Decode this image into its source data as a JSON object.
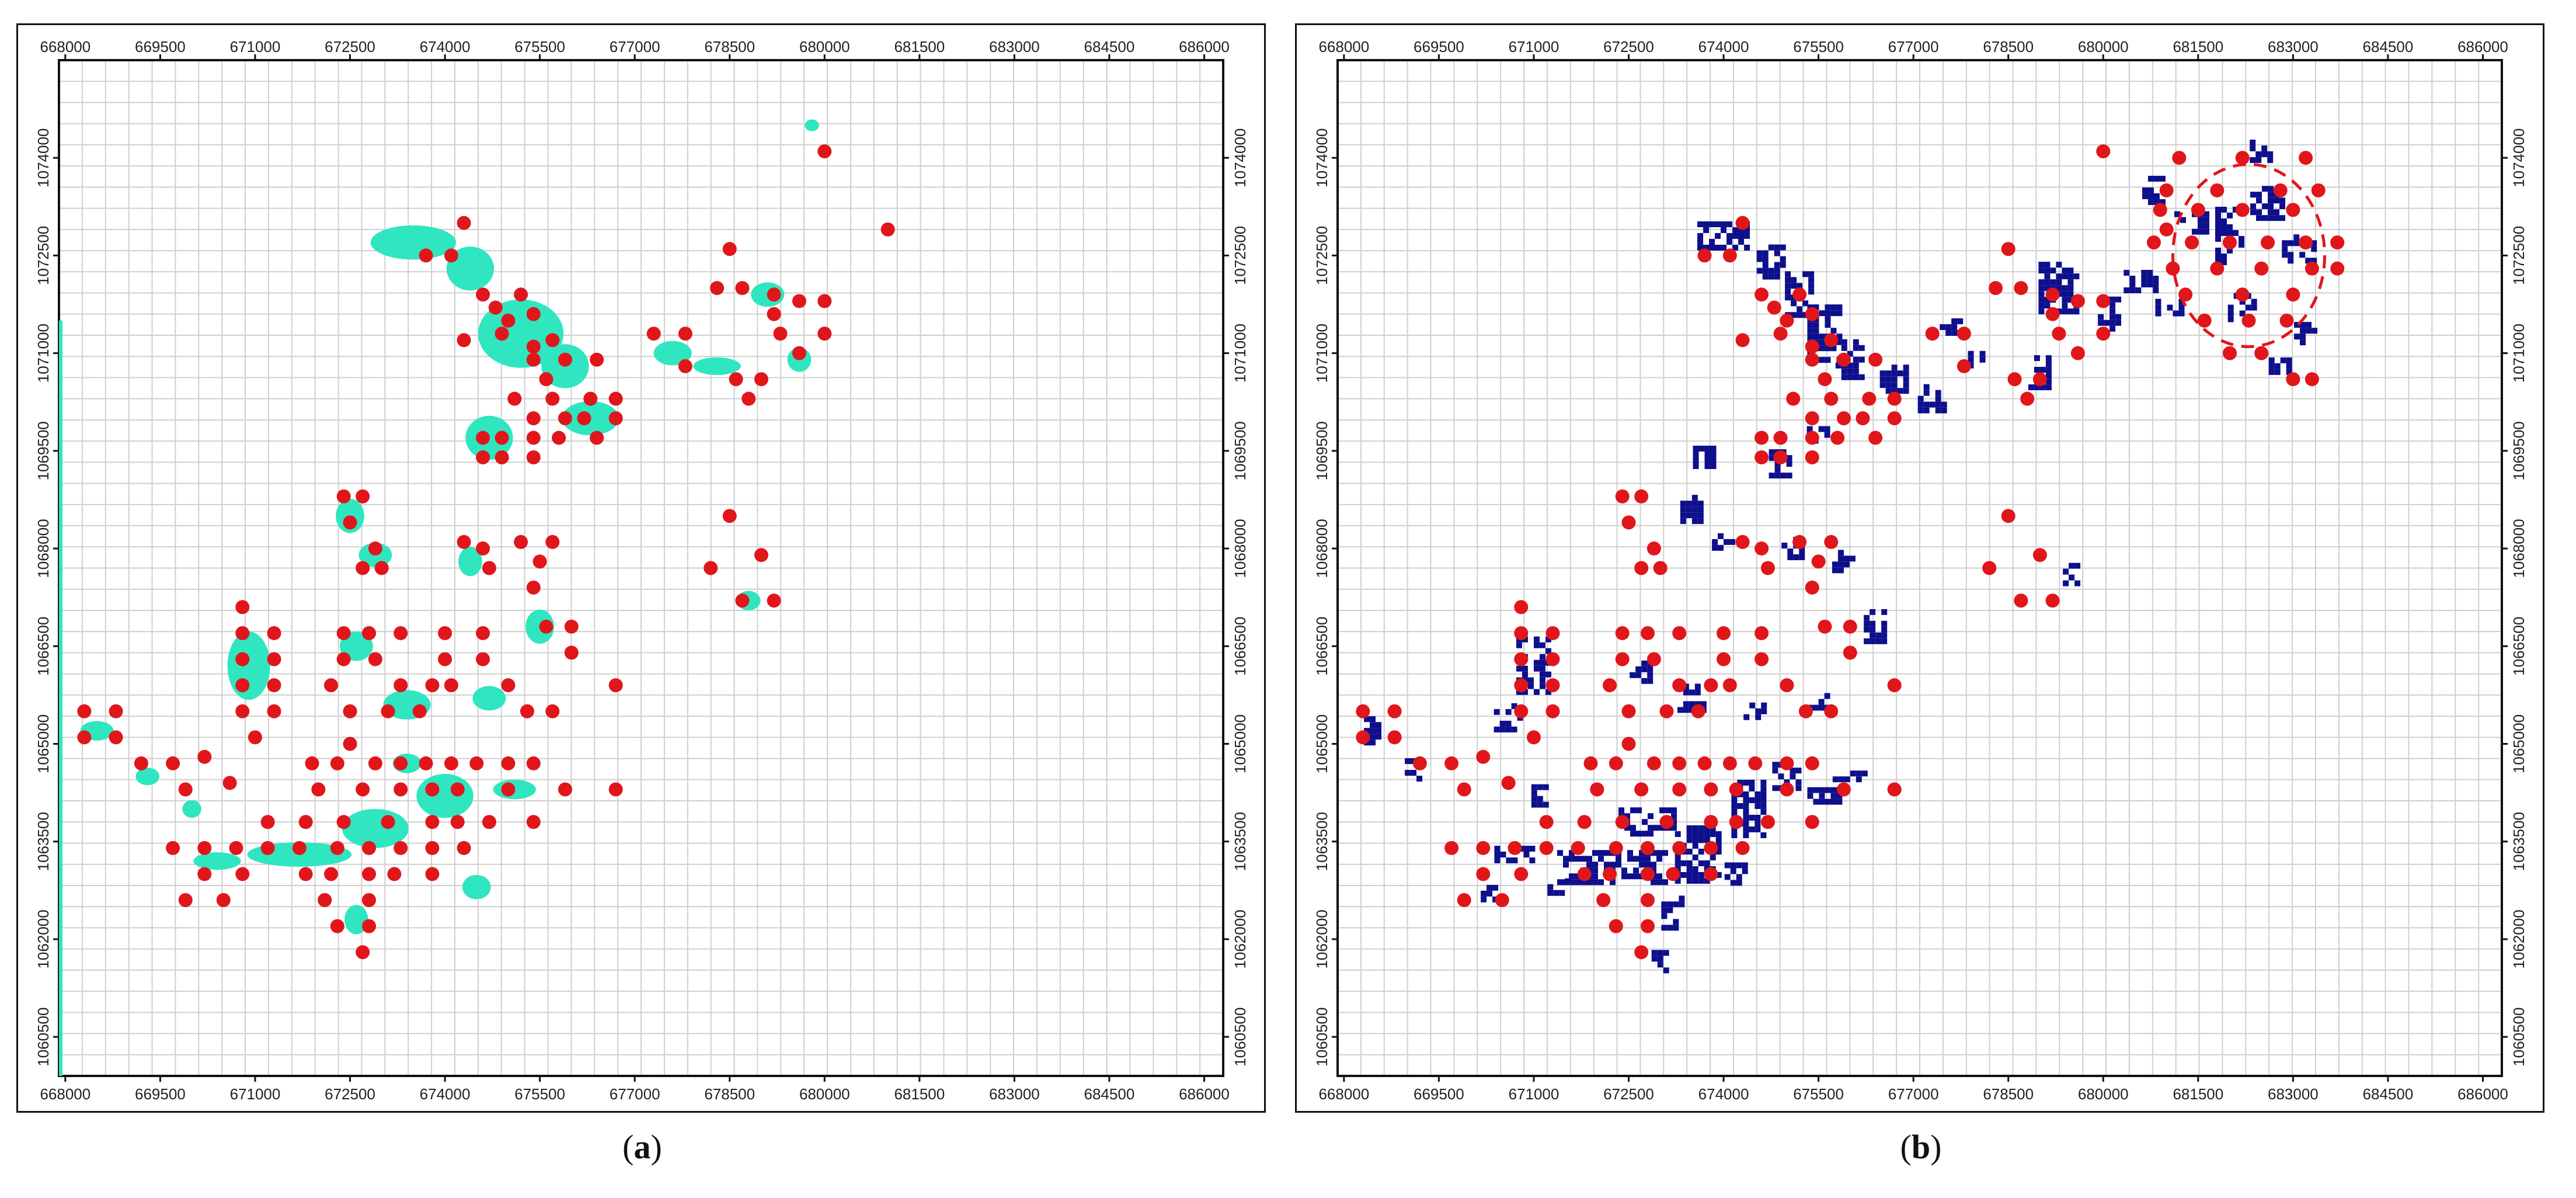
{
  "captions": {
    "a_open": "(",
    "a_letter": "a",
    "a_close": ")",
    "b_open": "(",
    "b_letter": "b",
    "b_close": ")"
  },
  "map": {
    "x_ticks": [
      "668000",
      "669500",
      "671000",
      "672500",
      "674000",
      "675500",
      "677000",
      "678500",
      "680000",
      "681500",
      "683000",
      "684500",
      "686000"
    ],
    "y_ticks": [
      "1074000",
      "1072500",
      "1071000",
      "1069500",
      "1068000",
      "1066500",
      "1065000",
      "1063500",
      "1062000",
      "1060500"
    ],
    "x_range": [
      667900,
      686300
    ],
    "y_range": [
      1059900,
      1075500
    ],
    "grid": true
  },
  "colors": {
    "water_a": "#2fe6c0",
    "cells_b": "#0d0f8c",
    "points": "#e0161b",
    "ellipse": "#e0161b",
    "grid": "#cfcfcf",
    "frame": "#111111"
  },
  "points": [
    [
      673700,
      1072500
    ],
    [
      674100,
      1072500
    ],
    [
      674300,
      1073000
    ],
    [
      674600,
      1071900
    ],
    [
      675200,
      1071900
    ],
    [
      674800,
      1071700
    ],
    [
      675000,
      1071500
    ],
    [
      675400,
      1071600
    ],
    [
      674300,
      1071200
    ],
    [
      674900,
      1071300
    ],
    [
      675400,
      1071100
    ],
    [
      675700,
      1071200
    ],
    [
      675400,
      1070900
    ],
    [
      675900,
      1070900
    ],
    [
      676400,
      1070900
    ],
    [
      675600,
      1070600
    ],
    [
      675100,
      1070300
    ],
    [
      675700,
      1070300
    ],
    [
      676300,
      1070300
    ],
    [
      676700,
      1070300
    ],
    [
      675400,
      1070000
    ],
    [
      675900,
      1070000
    ],
    [
      676200,
      1070000
    ],
    [
      676700,
      1070000
    ],
    [
      674600,
      1069700
    ],
    [
      674900,
      1069700
    ],
    [
      675400,
      1069700
    ],
    [
      675800,
      1069700
    ],
    [
      676400,
      1069700
    ],
    [
      674600,
      1069400
    ],
    [
      674900,
      1069400
    ],
    [
      675400,
      1069400
    ],
    [
      677300,
      1071300
    ],
    [
      677800,
      1071300
    ],
    [
      677800,
      1070800
    ],
    [
      678500,
      1072600
    ],
    [
      678300,
      1072000
    ],
    [
      678700,
      1072000
    ],
    [
      679200,
      1071900
    ],
    [
      679600,
      1071800
    ],
    [
      680000,
      1071800
    ],
    [
      679200,
      1071600
    ],
    [
      679300,
      1071300
    ],
    [
      680000,
      1071300
    ],
    [
      678600,
      1070600
    ],
    [
      679000,
      1070600
    ],
    [
      679600,
      1071000
    ],
    [
      678800,
      1070300
    ],
    [
      680000,
      1074100
    ],
    [
      681000,
      1072900
    ],
    [
      672400,
      1068800
    ],
    [
      672700,
      1068800
    ],
    [
      672500,
      1068400
    ],
    [
      672900,
      1068000
    ],
    [
      673000,
      1067700
    ],
    [
      672700,
      1067700
    ],
    [
      674300,
      1068100
    ],
    [
      674600,
      1068000
    ],
    [
      674700,
      1067700
    ],
    [
      675200,
      1068100
    ],
    [
      675700,
      1068100
    ],
    [
      675500,
      1067800
    ],
    [
      675400,
      1067400
    ],
    [
      675600,
      1066800
    ],
    [
      676000,
      1066800
    ],
    [
      676000,
      1066400
    ],
    [
      678500,
      1068500
    ],
    [
      679000,
      1067900
    ],
    [
      678200,
      1067700
    ],
    [
      678700,
      1067200
    ],
    [
      679200,
      1067200
    ],
    [
      670800,
      1067100
    ],
    [
      670800,
      1066700
    ],
    [
      671300,
      1066700
    ],
    [
      670800,
      1066300
    ],
    [
      671300,
      1066300
    ],
    [
      670800,
      1065900
    ],
    [
      671300,
      1065900
    ],
    [
      670800,
      1065500
    ],
    [
      671300,
      1065500
    ],
    [
      671000,
      1065100
    ],
    [
      672400,
      1066700
    ],
    [
      672800,
      1066700
    ],
    [
      673300,
      1066700
    ],
    [
      674000,
      1066700
    ],
    [
      674600,
      1066700
    ],
    [
      672400,
      1066300
    ],
    [
      672900,
      1066300
    ],
    [
      674000,
      1066300
    ],
    [
      674600,
      1066300
    ],
    [
      672200,
      1065900
    ],
    [
      673300,
      1065900
    ],
    [
      673800,
      1065900
    ],
    [
      674100,
      1065900
    ],
    [
      675000,
      1065900
    ],
    [
      672500,
      1065500
    ],
    [
      673100,
      1065500
    ],
    [
      673600,
      1065500
    ],
    [
      675300,
      1065500
    ],
    [
      675700,
      1065500
    ],
    [
      676700,
      1065900
    ],
    [
      668300,
      1065500
    ],
    [
      668800,
      1065500
    ],
    [
      668300,
      1065100
    ],
    [
      668800,
      1065100
    ],
    [
      672500,
      1065000
    ],
    [
      669200,
      1064700
    ],
    [
      669700,
      1064700
    ],
    [
      669900,
      1064300
    ],
    [
      670200,
      1064800
    ],
    [
      670600,
      1064400
    ],
    [
      671900,
      1064700
    ],
    [
      672300,
      1064700
    ],
    [
      672900,
      1064700
    ],
    [
      673300,
      1064700
    ],
    [
      673700,
      1064700
    ],
    [
      674100,
      1064700
    ],
    [
      674500,
      1064700
    ],
    [
      675000,
      1064700
    ],
    [
      675400,
      1064700
    ],
    [
      672000,
      1064300
    ],
    [
      672700,
      1064300
    ],
    [
      673300,
      1064300
    ],
    [
      673800,
      1064300
    ],
    [
      674200,
      1064300
    ],
    [
      675000,
      1064300
    ],
    [
      675900,
      1064300
    ],
    [
      676700,
      1064300
    ],
    [
      671200,
      1063800
    ],
    [
      671800,
      1063800
    ],
    [
      672400,
      1063800
    ],
    [
      673100,
      1063800
    ],
    [
      673800,
      1063800
    ],
    [
      674200,
      1063800
    ],
    [
      674700,
      1063800
    ],
    [
      675400,
      1063800
    ],
    [
      669700,
      1063400
    ],
    [
      670200,
      1063400
    ],
    [
      670700,
      1063400
    ],
    [
      671200,
      1063400
    ],
    [
      671700,
      1063400
    ],
    [
      672300,
      1063400
    ],
    [
      672800,
      1063400
    ],
    [
      673300,
      1063400
    ],
    [
      673800,
      1063400
    ],
    [
      674300,
      1063400
    ],
    [
      670200,
      1063000
    ],
    [
      670800,
      1063000
    ],
    [
      671800,
      1063000
    ],
    [
      672200,
      1063000
    ],
    [
      672800,
      1063000
    ],
    [
      673200,
      1063000
    ],
    [
      673800,
      1063000
    ],
    [
      669900,
      1062600
    ],
    [
      670500,
      1062600
    ],
    [
      672100,
      1062600
    ],
    [
      672800,
      1062600
    ],
    [
      672300,
      1062200
    ],
    [
      672800,
      1062200
    ],
    [
      672700,
      1061800
    ]
  ],
  "points_b_extra": [
    [
      681200,
      1074000
    ],
    [
      682200,
      1074000
    ],
    [
      683200,
      1074000
    ],
    [
      681000,
      1073500
    ],
    [
      681800,
      1073500
    ],
    [
      682800,
      1073500
    ],
    [
      683400,
      1073500
    ],
    [
      680900,
      1073200
    ],
    [
      681500,
      1073200
    ],
    [
      682200,
      1073200
    ],
    [
      683000,
      1073200
    ],
    [
      680800,
      1072700
    ],
    [
      681400,
      1072700
    ],
    [
      682000,
      1072700
    ],
    [
      682600,
      1072700
    ],
    [
      683200,
      1072700
    ],
    [
      683700,
      1072700
    ],
    [
      681100,
      1072300
    ],
    [
      681800,
      1072300
    ],
    [
      682500,
      1072300
    ],
    [
      683300,
      1072300
    ],
    [
      683700,
      1072300
    ],
    [
      681300,
      1071900
    ],
    [
      682200,
      1071900
    ],
    [
      683000,
      1071900
    ],
    [
      681600,
      1071500
    ],
    [
      682300,
      1071500
    ],
    [
      682900,
      1071500
    ],
    [
      682000,
      1071000
    ],
    [
      682500,
      1071000
    ],
    [
      683000,
      1070600
    ],
    [
      683300,
      1070600
    ]
  ],
  "ellipse_center": [
    682300,
    1072500
  ],
  "ellipse_radii": [
    1200,
    1400
  ],
  "blobs": [
    [
      673500,
      1072700,
      900,
      350
    ],
    [
      674400,
      1072300,
      500,
      450
    ],
    [
      675200,
      1071300,
      900,
      700
    ],
    [
      675900,
      1070800,
      500,
      450
    ],
    [
      674700,
      1069700,
      500,
      450
    ],
    [
      676300,
      1070000,
      600,
      350
    ],
    [
      677600,
      1071000,
      400,
      250
    ],
    [
      678300,
      1070800,
      500,
      180
    ],
    [
      679100,
      1071900,
      350,
      250
    ],
    [
      679600,
      1070900,
      250,
      250
    ],
    [
      679800,
      1074500,
      150,
      120
    ],
    [
      672500,
      1068500,
      300,
      350
    ],
    [
      672900,
      1067900,
      350,
      250
    ],
    [
      674400,
      1067800,
      250,
      300
    ],
    [
      675500,
      1066800,
      300,
      350
    ],
    [
      678800,
      1067200,
      250,
      200
    ],
    [
      670900,
      1066200,
      450,
      700
    ],
    [
      672600,
      1066500,
      350,
      300
    ],
    [
      673400,
      1065600,
      500,
      300
    ],
    [
      674700,
      1065700,
      350,
      250
    ],
    [
      668500,
      1065200,
      350,
      200
    ],
    [
      669300,
      1064500,
      250,
      180
    ],
    [
      670000,
      1064000,
      200,
      180
    ],
    [
      671700,
      1063300,
      1100,
      250
    ],
    [
      672900,
      1063700,
      700,
      400
    ],
    [
      674000,
      1064200,
      600,
      450
    ],
    [
      675100,
      1064300,
      450,
      200
    ],
    [
      672600,
      1062300,
      250,
      300
    ],
    [
      673400,
      1064700,
      300,
      200
    ],
    [
      674500,
      1062800,
      300,
      250
    ],
    [
      670400,
      1063200,
      500,
      180
    ]
  ],
  "cells_b": [
    [
      674000,
      1072800,
      9,
      5
    ],
    [
      674800,
      1072400,
      6,
      6
    ],
    [
      675200,
      1071900,
      5,
      8
    ],
    [
      675600,
      1071300,
      6,
      10
    ],
    [
      676000,
      1070900,
      5,
      7
    ],
    [
      676700,
      1070600,
      5,
      5
    ],
    [
      677300,
      1070300,
      5,
      5
    ],
    [
      675500,
      1069700,
      4,
      4
    ],
    [
      674900,
      1069300,
      4,
      5
    ],
    [
      673700,
      1069400,
      4,
      4
    ],
    [
      677600,
      1071400,
      4,
      3
    ],
    [
      678000,
      1070900,
      3,
      3
    ],
    [
      679000,
      1070700,
      4,
      6
    ],
    [
      679300,
      1072000,
      7,
      9
    ],
    [
      680100,
      1071600,
      4,
      6
    ],
    [
      680600,
      1072100,
      6,
      4
    ],
    [
      681100,
      1071700,
      6,
      3
    ],
    [
      680800,
      1073500,
      4,
      5
    ],
    [
      681400,
      1073000,
      6,
      4
    ],
    [
      682000,
      1072800,
      5,
      10
    ],
    [
      682500,
      1074100,
      4,
      4
    ],
    [
      682600,
      1073300,
      6,
      6
    ],
    [
      683100,
      1072600,
      6,
      5
    ],
    [
      682200,
      1071700,
      5,
      5
    ],
    [
      683200,
      1071300,
      4,
      4
    ],
    [
      682800,
      1070800,
      4,
      3
    ],
    [
      673500,
      1068600,
      4,
      5
    ],
    [
      674000,
      1068100,
      4,
      3
    ],
    [
      675100,
      1068000,
      4,
      4
    ],
    [
      675900,
      1067800,
      4,
      4
    ],
    [
      679500,
      1067600,
      3,
      4
    ],
    [
      671000,
      1066200,
      6,
      10
    ],
    [
      670600,
      1065400,
      5,
      5
    ],
    [
      672700,
      1066100,
      4,
      4
    ],
    [
      673500,
      1065700,
      5,
      5
    ],
    [
      674500,
      1065500,
      4,
      3
    ],
    [
      675500,
      1065600,
      4,
      4
    ],
    [
      676400,
      1066800,
      4,
      6
    ],
    [
      668500,
      1065200,
      4,
      5
    ],
    [
      669100,
      1064600,
      3,
      4
    ],
    [
      671100,
      1064200,
      3,
      4
    ],
    [
      672800,
      1063800,
      10,
      5
    ],
    [
      672200,
      1063100,
      20,
      6
    ],
    [
      673600,
      1063300,
      8,
      10
    ],
    [
      674400,
      1064000,
      6,
      10
    ],
    [
      675000,
      1064500,
      5,
      5
    ],
    [
      675600,
      1064200,
      6,
      3
    ],
    [
      676000,
      1064500,
      6,
      2
    ],
    [
      673200,
      1062400,
      4,
      6
    ],
    [
      673000,
      1061700,
      3,
      5
    ],
    [
      670700,
      1063300,
      7,
      3
    ],
    [
      671400,
      1062800,
      4,
      3
    ],
    [
      674200,
      1063000,
      4,
      4
    ],
    [
      670300,
      1062700,
      3,
      3
    ]
  ]
}
